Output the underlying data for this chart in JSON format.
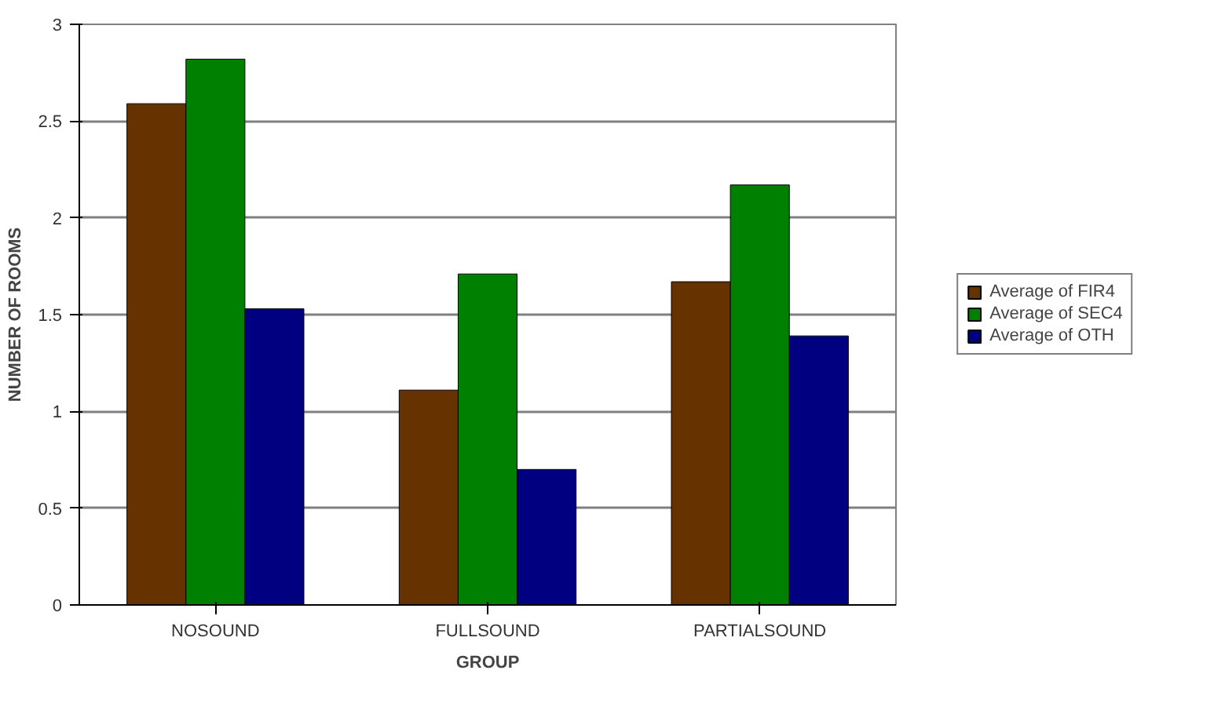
{
  "chart_data": {
    "type": "bar",
    "xlabel": "GROUP",
    "ylabel": "NUMBER OF ROOMS",
    "categories": [
      "NOSOUND",
      "FULLSOUND",
      "PARTIALSOUND"
    ],
    "series": [
      {
        "name": "Average of FIR4",
        "color": "#663300",
        "values": [
          2.59,
          1.11,
          1.67
        ]
      },
      {
        "name": "Average of SEC4",
        "color": "#008000",
        "values": [
          2.82,
          1.71,
          2.17
        ]
      },
      {
        "name": "Average of OTH",
        "color": "#000080",
        "values": [
          1.53,
          0.7,
          1.39
        ]
      }
    ],
    "ylim": [
      0,
      3
    ],
    "yticks": [
      0,
      0.5,
      1,
      1.5,
      2,
      2.5,
      3
    ],
    "grid": "y",
    "legend": "right"
  }
}
